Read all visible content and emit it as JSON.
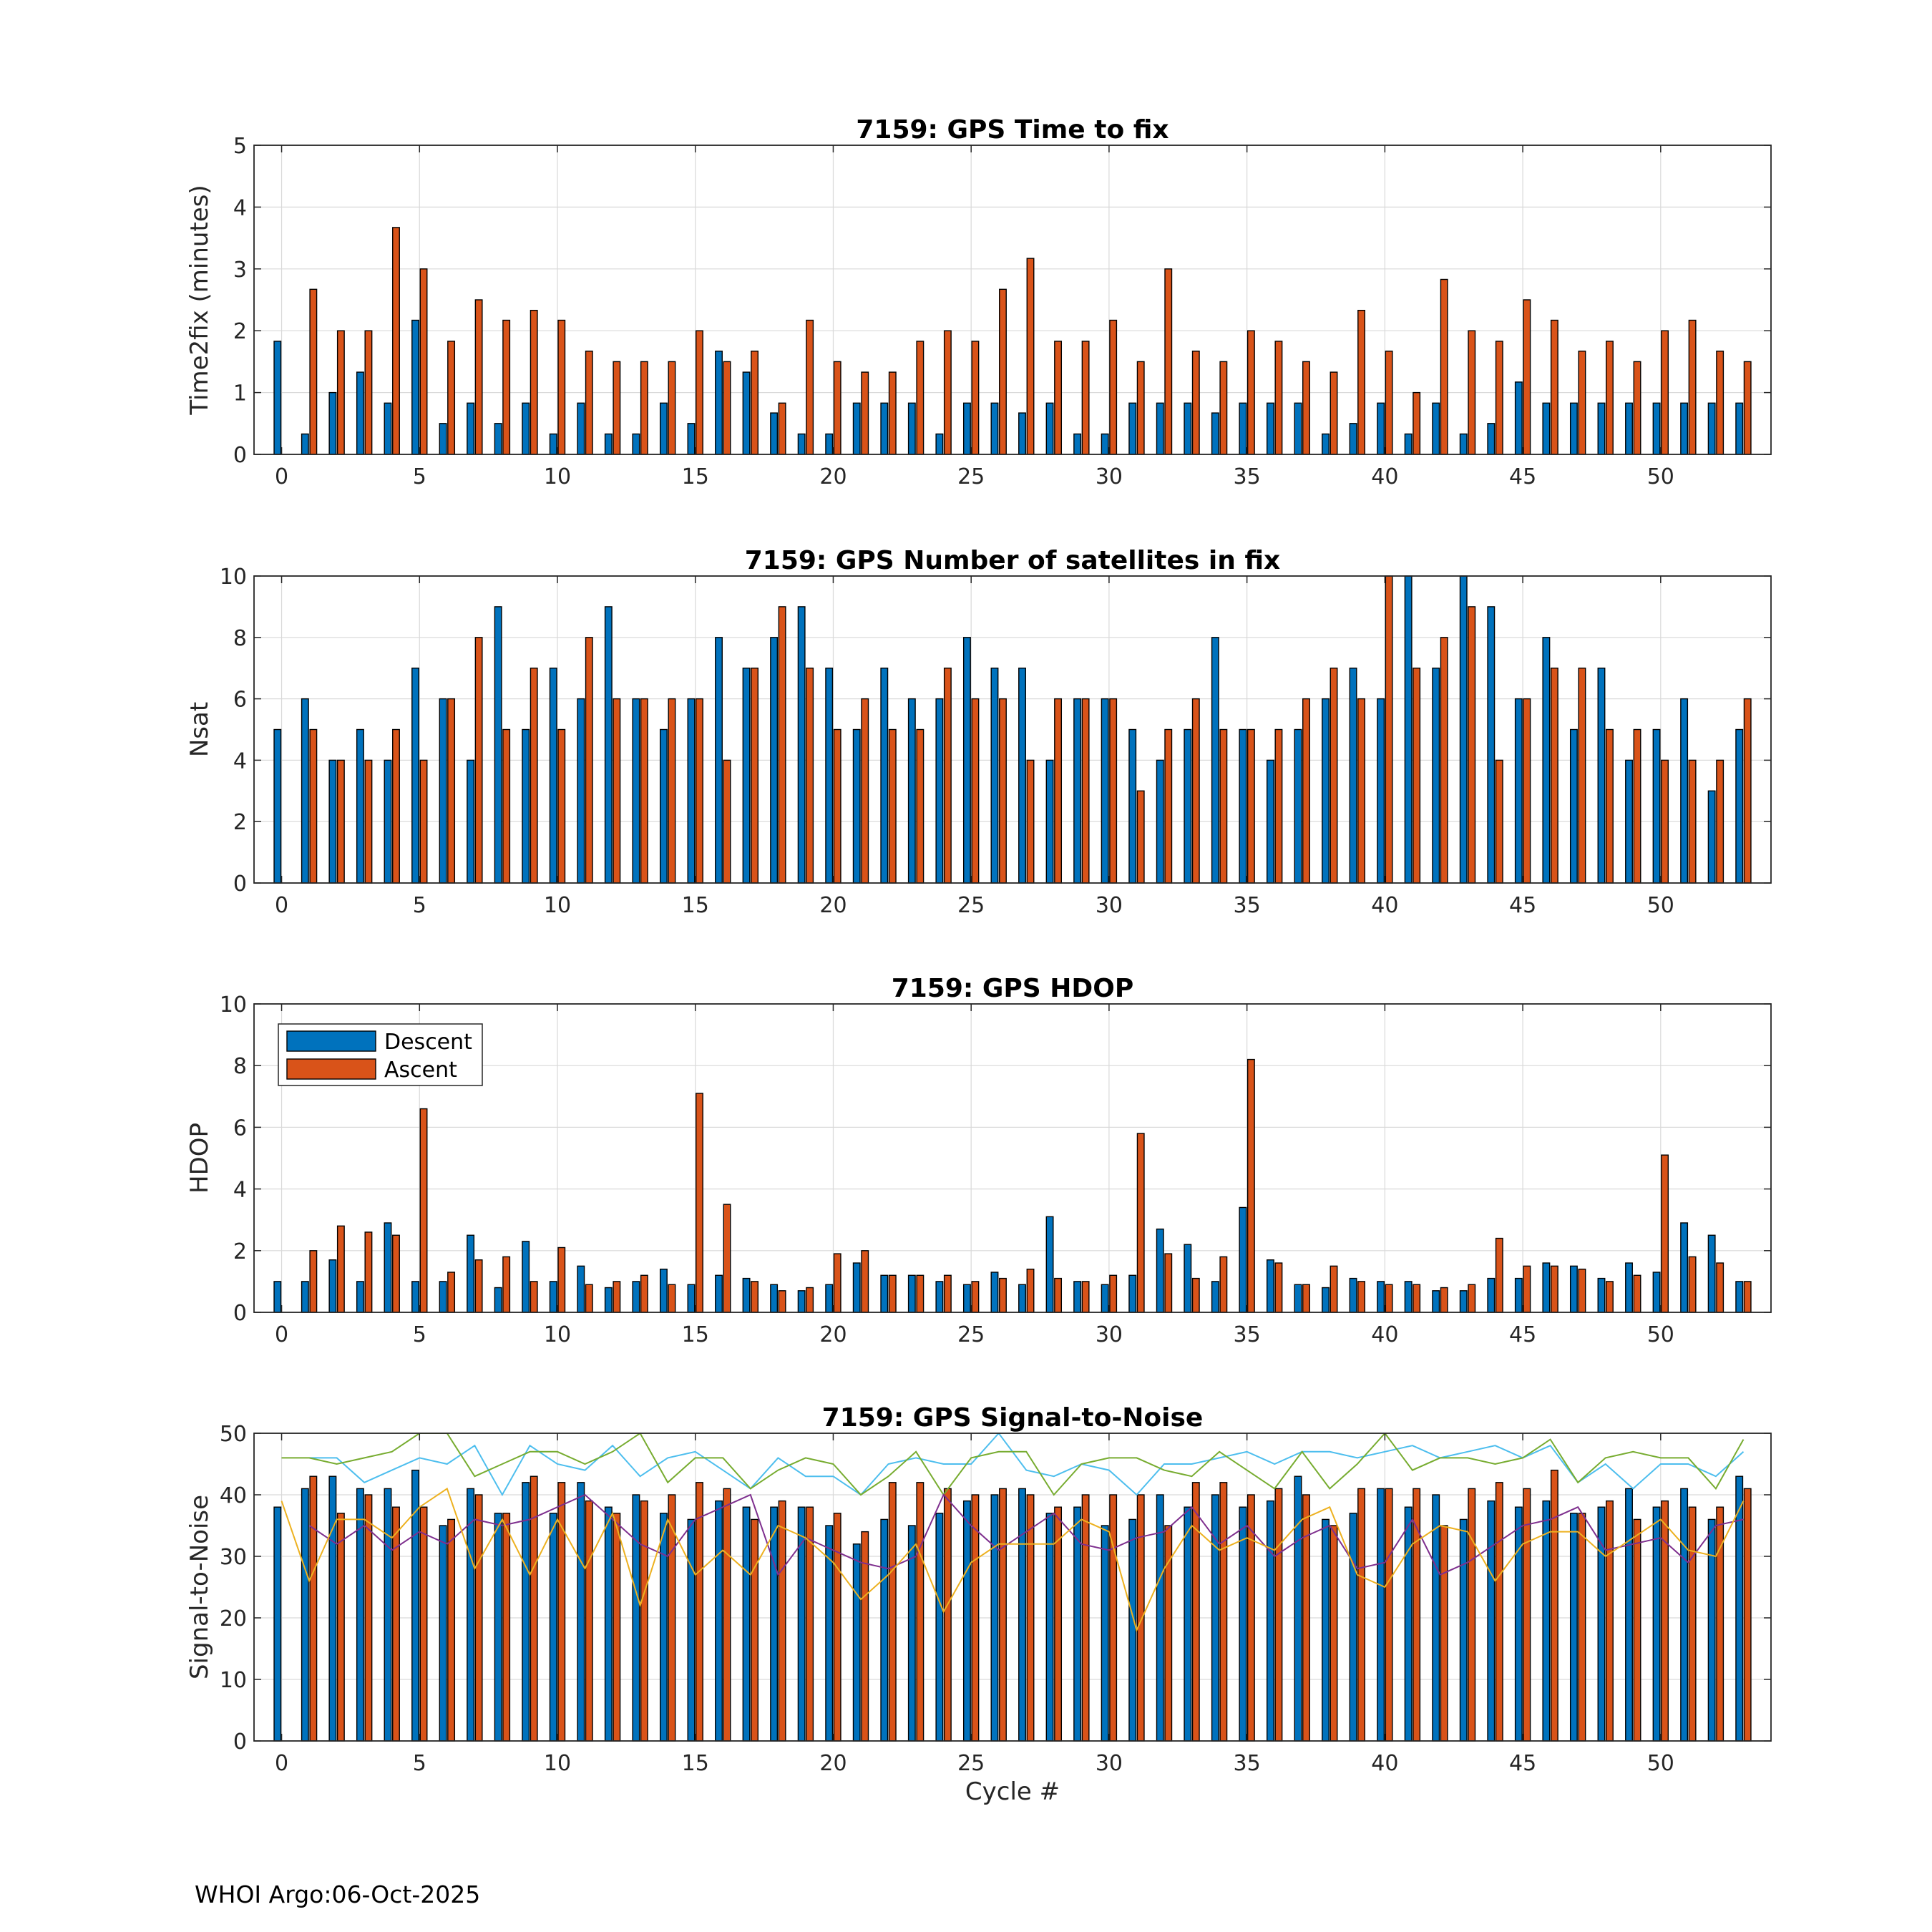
{
  "colors": {
    "descent": "#0072BD",
    "ascent": "#D95319",
    "grid": "#d9d9d9",
    "axis": "#262626",
    "snr_lines": [
      "#4DBEEE",
      "#77AC30",
      "#7E2F8E",
      "#EDB120"
    ]
  },
  "footer": "WHOI Argo:06-Oct-2025",
  "xlabel": "Cycle #",
  "legend": {
    "descent": "Descent",
    "ascent": "Ascent",
    "location": "top-left of panel 3"
  },
  "chart_data": [
    {
      "type": "bar",
      "title": "7159: GPS Time to fix",
      "ylabel": "Time2fix (minutes)",
      "xlim": [
        -1,
        54
      ],
      "ylim": [
        0,
        5
      ],
      "xticks": [
        0,
        5,
        10,
        15,
        20,
        25,
        30,
        35,
        40,
        45,
        50
      ],
      "yticks": [
        0,
        1,
        2,
        3,
        4,
        5
      ],
      "series": [
        {
          "name": "Descent",
          "values": [
            1.83,
            0.33,
            1.0,
            1.33,
            0.83,
            2.17,
            0.5,
            0.83,
            0.5,
            0.83,
            0.33,
            0.83,
            0.33,
            0.33,
            0.83,
            0.5,
            1.67,
            1.33,
            0.67,
            0.33,
            0.33,
            0.83,
            0.83,
            0.83,
            0.33,
            0.83,
            0.83,
            0.67,
            0.83,
            0.33,
            0.33,
            0.83,
            0.83,
            0.83,
            0.67,
            0.83,
            0.83,
            0.83,
            0.33,
            0.5,
            0.83,
            0.33,
            0.83,
            0.33,
            0.5,
            1.17,
            0.83,
            0.83,
            0.83,
            0.83,
            0.83,
            0.83,
            0.83,
            0.83
          ]
        },
        {
          "name": "Ascent",
          "values": [
            0,
            2.67,
            2.0,
            2.0,
            3.67,
            3.0,
            1.83,
            2.5,
            2.17,
            2.33,
            2.17,
            1.67,
            1.5,
            1.5,
            1.5,
            2.0,
            1.5,
            1.67,
            0.83,
            2.17,
            1.5,
            1.33,
            1.33,
            1.83,
            2.0,
            1.83,
            2.67,
            3.17,
            1.83,
            1.83,
            2.17,
            1.5,
            3.0,
            1.67,
            1.5,
            2.0,
            1.83,
            1.5,
            1.33,
            2.33,
            1.67,
            1.0,
            2.83,
            2.0,
            1.83,
            2.5,
            2.17,
            1.67,
            1.83,
            1.5,
            2.0,
            2.17,
            1.67,
            1.5
          ]
        }
      ]
    },
    {
      "type": "bar",
      "title": "7159: GPS Number of satellites in fix",
      "ylabel": "Nsat",
      "xlim": [
        -1,
        54
      ],
      "ylim": [
        0,
        10
      ],
      "xticks": [
        0,
        5,
        10,
        15,
        20,
        25,
        30,
        35,
        40,
        45,
        50
      ],
      "yticks": [
        0,
        2,
        4,
        6,
        8,
        10
      ],
      "series": [
        {
          "name": "Descent",
          "values": [
            5,
            6,
            4,
            5,
            4,
            7,
            6,
            4,
            9,
            5,
            7,
            6,
            9,
            6,
            5,
            6,
            8,
            7,
            8,
            9,
            7,
            5,
            7,
            6,
            6,
            8,
            7,
            7,
            4,
            6,
            6,
            5,
            4,
            5,
            8,
            5,
            4,
            5,
            6,
            7,
            6,
            10,
            7,
            10,
            9,
            6,
            8,
            5,
            7,
            4,
            5,
            6,
            3,
            5
          ]
        },
        {
          "name": "Ascent",
          "values": [
            0,
            5,
            4,
            4,
            5,
            4,
            6,
            8,
            5,
            7,
            5,
            8,
            6,
            6,
            6,
            6,
            4,
            7,
            9,
            7,
            5,
            6,
            5,
            5,
            7,
            6,
            6,
            4,
            6,
            6,
            6,
            3,
            5,
            6,
            5,
            5,
            5,
            6,
            7,
            6,
            10,
            7,
            8,
            9,
            4,
            6,
            7,
            7,
            5,
            5,
            4,
            4,
            4,
            6
          ]
        }
      ]
    },
    {
      "type": "bar",
      "title": "7159: GPS HDOP",
      "ylabel": "HDOP",
      "xlim": [
        -1,
        54
      ],
      "ylim": [
        0,
        10
      ],
      "xticks": [
        0,
        5,
        10,
        15,
        20,
        25,
        30,
        35,
        40,
        45,
        50
      ],
      "yticks": [
        0,
        2,
        4,
        6,
        8,
        10
      ],
      "legend": true,
      "series": [
        {
          "name": "Descent",
          "values": [
            1.0,
            1.0,
            1.7,
            1.0,
            2.9,
            1.0,
            1.0,
            2.5,
            0.8,
            2.3,
            1.0,
            1.5,
            0.8,
            1.0,
            1.4,
            0.9,
            1.2,
            1.1,
            0.9,
            0.7,
            0.9,
            1.6,
            1.2,
            1.2,
            1.0,
            0.9,
            1.3,
            0.9,
            3.1,
            1.0,
            0.9,
            1.2,
            2.7,
            2.2,
            1.0,
            3.4,
            1.7,
            0.9,
            0.8,
            1.1,
            1.0,
            1.0,
            0.7,
            0.7,
            1.1,
            1.1,
            1.6,
            1.5,
            1.1,
            1.6,
            1.3,
            2.9,
            2.5,
            1.0
          ]
        },
        {
          "name": "Ascent",
          "values": [
            0,
            2.0,
            2.8,
            2.6,
            2.5,
            6.6,
            1.3,
            1.7,
            1.8,
            1.0,
            2.1,
            0.9,
            1.0,
            1.2,
            0.9,
            7.1,
            3.5,
            1.0,
            0.7,
            0.8,
            1.9,
            2.0,
            1.2,
            1.2,
            1.2,
            1.0,
            1.1,
            1.4,
            1.1,
            1.0,
            1.2,
            5.8,
            1.9,
            1.1,
            1.8,
            8.2,
            1.6,
            0.9,
            1.5,
            1.0,
            0.9,
            0.9,
            0.8,
            0.9,
            2.4,
            1.5,
            1.5,
            1.4,
            1.0,
            1.2,
            5.1,
            1.8,
            1.6,
            1.0
          ]
        }
      ]
    },
    {
      "type": "bar",
      "title": "7159: GPS Signal-to-Noise",
      "ylabel": "Signal-to-Noise",
      "xlabel": "Cycle #",
      "xlim": [
        -1,
        54
      ],
      "ylim": [
        0,
        50
      ],
      "xticks": [
        0,
        5,
        10,
        15,
        20,
        25,
        30,
        35,
        40,
        45,
        50
      ],
      "yticks": [
        0,
        10,
        20,
        30,
        40,
        50
      ],
      "series": [
        {
          "name": "Descent",
          "values": [
            38,
            41,
            43,
            41,
            41,
            44,
            35,
            41,
            37,
            42,
            37,
            42,
            38,
            40,
            37,
            36,
            39,
            38,
            38,
            38,
            35,
            32,
            36,
            35,
            37,
            39,
            40,
            41,
            37,
            38,
            35,
            36,
            40,
            38,
            40,
            38,
            39,
            43,
            36,
            37,
            41,
            38,
            40,
            36,
            39,
            38,
            39,
            37,
            38,
            41,
            38,
            41,
            36,
            43
          ]
        },
        {
          "name": "Ascent",
          "values": [
            0,
            43,
            37,
            40,
            38,
            38,
            36,
            40,
            37,
            43,
            42,
            39,
            37,
            39,
            40,
            42,
            41,
            36,
            39,
            38,
            37,
            34,
            42,
            42,
            41,
            40,
            41,
            40,
            38,
            40,
            40,
            40,
            35,
            42,
            42,
            40,
            41,
            40,
            35,
            41,
            41,
            41,
            35,
            41,
            42,
            41,
            44,
            37,
            39,
            36,
            39,
            38,
            38,
            41
          ]
        }
      ],
      "lines": [
        {
          "name": "max",
          "x": [
            1,
            2,
            3,
            4,
            5,
            6,
            7,
            8,
            9,
            10,
            11,
            12,
            13,
            14,
            15,
            16,
            17,
            18,
            19,
            20,
            21,
            22,
            23,
            24,
            25,
            26,
            27,
            28,
            29,
            30,
            31,
            32,
            33,
            34,
            35,
            36,
            37,
            38,
            39,
            40,
            41,
            42,
            43,
            44,
            45,
            46,
            47,
            48,
            49,
            50,
            51,
            52,
            53
          ],
          "values": [
            46,
            46,
            42,
            44,
            46,
            45,
            48,
            40,
            48,
            45,
            44,
            48,
            43,
            46,
            47,
            44,
            41,
            46,
            43,
            43,
            40,
            45,
            46,
            45,
            45,
            50,
            44,
            43,
            45,
            44,
            40,
            45,
            45,
            46,
            47,
            45,
            47,
            47,
            46,
            47,
            48,
            46,
            47,
            48,
            46,
            48,
            42,
            45,
            41,
            45,
            45,
            43,
            47
          ]
        },
        {
          "name": "second",
          "x": [
            0,
            1,
            2,
            3,
            4,
            5,
            6,
            7,
            8,
            9,
            10,
            11,
            12,
            13,
            14,
            15,
            16,
            17,
            18,
            19,
            20,
            21,
            22,
            23,
            24,
            25,
            26,
            27,
            28,
            29,
            30,
            31,
            32,
            33,
            34,
            35,
            36,
            37,
            38,
            39,
            40,
            41,
            42,
            43,
            44,
            45,
            46,
            47,
            48,
            49,
            50,
            51,
            52,
            53
          ],
          "values": [
            46,
            46,
            45,
            46,
            47,
            50,
            50,
            43,
            45,
            47,
            47,
            45,
            47,
            50,
            42,
            46,
            46,
            41,
            44,
            46,
            45,
            40,
            43,
            47,
            40,
            46,
            47,
            47,
            40,
            45,
            46,
            46,
            44,
            43,
            47,
            44,
            41,
            47,
            41,
            45,
            50,
            44,
            46,
            46,
            45,
            46,
            49,
            42,
            46,
            47,
            46,
            46,
            41,
            49
          ]
        },
        {
          "name": "third",
          "x": [
            1,
            2,
            3,
            4,
            5,
            6,
            7,
            8,
            9,
            10,
            11,
            12,
            13,
            14,
            15,
            16,
            17,
            18,
            19,
            20,
            21,
            22,
            23,
            24,
            25,
            26,
            27,
            28,
            29,
            30,
            31,
            32,
            33,
            34,
            35,
            36,
            37,
            38,
            39,
            40,
            41,
            42,
            43,
            44,
            45,
            46,
            47,
            48,
            49,
            50,
            51,
            52,
            53
          ],
          "values": [
            35,
            32,
            35,
            31,
            34,
            32,
            36,
            35,
            36,
            38,
            40,
            36,
            32,
            30,
            36,
            38,
            40,
            27,
            33,
            31,
            29,
            28,
            30,
            40,
            35,
            31,
            34,
            37,
            32,
            31,
            33,
            34,
            38,
            32,
            35,
            30,
            33,
            35,
            28,
            29,
            36,
            27,
            29,
            32,
            35,
            36,
            38,
            31,
            32,
            33,
            29,
            35,
            36
          ]
        },
        {
          "name": "fourth",
          "x": [
            0,
            1,
            2,
            3,
            4,
            5,
            6,
            7,
            8,
            9,
            10,
            11,
            12,
            13,
            14,
            15,
            16,
            17,
            18,
            19,
            20,
            21,
            22,
            23,
            24,
            25,
            26,
            27,
            28,
            29,
            30,
            31,
            32,
            33,
            34,
            35,
            36,
            37,
            38,
            39,
            40,
            41,
            42,
            43,
            44,
            45,
            46,
            47,
            48,
            49,
            50,
            51,
            52,
            53
          ],
          "values": [
            39,
            26,
            36,
            36,
            33,
            38,
            41,
            28,
            36,
            27,
            36,
            28,
            37,
            22,
            36,
            27,
            31,
            27,
            35,
            33,
            29,
            23,
            27,
            32,
            21,
            29,
            32,
            32,
            32,
            36,
            34,
            18,
            28,
            35,
            31,
            33,
            31,
            36,
            38,
            27,
            25,
            32,
            35,
            34,
            26,
            32,
            34,
            34,
            30,
            33,
            36,
            31,
            30,
            39
          ]
        }
      ]
    }
  ]
}
